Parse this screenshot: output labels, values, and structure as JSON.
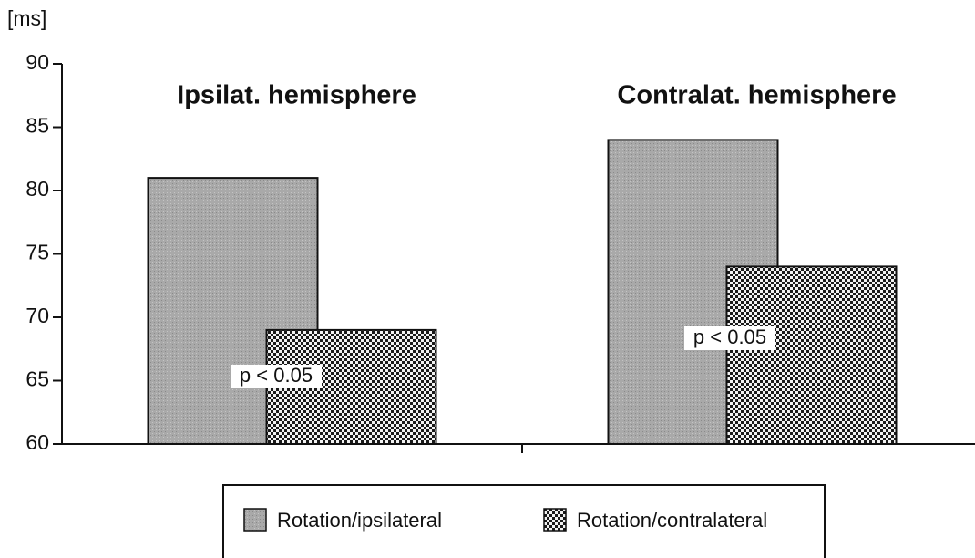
{
  "chart_data": {
    "type": "bar",
    "ylabel": "[ms]",
    "categories": [
      "Ipsilat.  hemisphere",
      "Contralat.  hemisphere"
    ],
    "series": [
      {
        "name": "Rotation/ipsilateral",
        "color": "#a9a9a9",
        "values": [
          81,
          84
        ]
      },
      {
        "name": "Rotation/contralateral",
        "color": "#222222",
        "values": [
          69,
          74
        ]
      }
    ],
    "annotations": [
      "p < 0.05",
      "p < 0.05"
    ],
    "ylim": [
      60,
      90
    ],
    "yticks": [
      60,
      65,
      70,
      75,
      80,
      85,
      90
    ],
    "grid": false
  }
}
